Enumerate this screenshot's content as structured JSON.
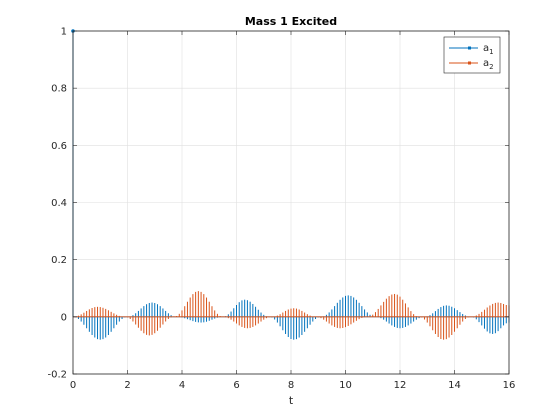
{
  "chart_data": {
    "type": "line",
    "title": "Mass 1 Excited",
    "xlabel": "t",
    "ylabel": "",
    "xlim": [
      0,
      16
    ],
    "ylim": [
      -0.2,
      1
    ],
    "xticks": [
      "0",
      "2",
      "4",
      "6",
      "8",
      "10",
      "12",
      "14",
      "16"
    ],
    "yticks": [
      "-0.2",
      "0",
      "0.2",
      "0.4",
      "0.6",
      "0.8",
      "1"
    ],
    "grid": true,
    "legend_position": "top-right",
    "style": "stem",
    "sample_step": 0.1,
    "series": [
      {
        "name": "a1",
        "color": "#0072bd",
        "t0_value": 1,
        "envelope_t": [
          0,
          1,
          2,
          2.9,
          3.8,
          4.7,
          5.5,
          6.3,
          7.2,
          8.1,
          9.1,
          10.1,
          11.1,
          12.0,
          12.9,
          13.7,
          14.6,
          15.4,
          16
        ],
        "envelope_v": [
          0,
          -0.08,
          0.0,
          0.05,
          0.0,
          -0.02,
          0.0,
          0.06,
          0.0,
          -0.08,
          0.0,
          0.075,
          0.0,
          -0.04,
          0.0,
          0.04,
          0.0,
          -0.06,
          -0.02
        ]
      },
      {
        "name": "a2",
        "color": "#d95319",
        "t0_value": 0,
        "envelope_t": [
          0,
          0.9,
          1.9,
          2.8,
          3.7,
          4.6,
          5.5,
          6.4,
          7.3,
          8.1,
          8.9,
          9.8,
          10.8,
          11.8,
          12.7,
          13.6,
          14.6,
          15.6,
          16
        ],
        "envelope_v": [
          0,
          0.035,
          0.0,
          -0.065,
          0.0,
          0.09,
          0.0,
          -0.04,
          0.0,
          0.03,
          0.0,
          -0.04,
          0.0,
          0.08,
          0.0,
          -0.08,
          0.0,
          0.05,
          0.04
        ]
      }
    ]
  },
  "legend": {
    "entries": [
      {
        "base": "a",
        "sub": "1"
      },
      {
        "base": "a",
        "sub": "2"
      }
    ]
  }
}
